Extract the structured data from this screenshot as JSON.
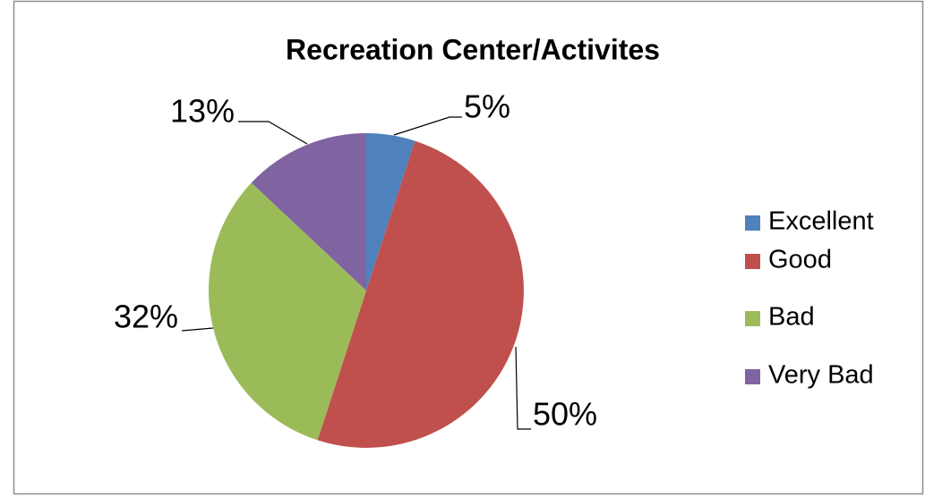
{
  "chart_data": {
    "type": "pie",
    "title": "Recreation Center/Activites",
    "categories": [
      "Excellent",
      "Good",
      "Bad",
      "Very Bad"
    ],
    "values": [
      5,
      50,
      32,
      13
    ],
    "value_labels": [
      "5%",
      "50%",
      "32%",
      "13%"
    ],
    "colors": [
      "#4f81bd",
      "#c0504d",
      "#9bbb59",
      "#8064a2"
    ],
    "legend": "right"
  }
}
